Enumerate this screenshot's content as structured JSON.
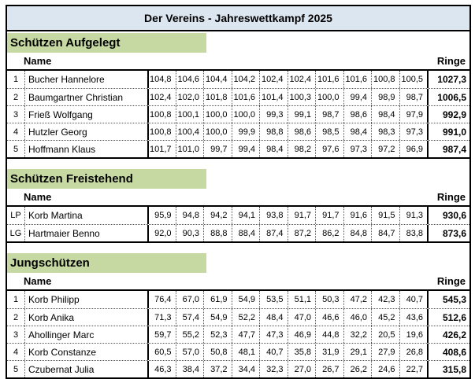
{
  "title": "Der Vereins - Jahreswettkampf 2025",
  "columns": {
    "name": "Name",
    "total": "Ringe"
  },
  "colors": {
    "title_bg": "#dce6f1",
    "section_banner_bg": "#c7d9a2",
    "border": "#000000"
  },
  "sections": [
    {
      "heading": "Schützen Aufgelegt",
      "rows": [
        {
          "rank": "1",
          "name": "Bucher Hannelore",
          "scores": [
            "104,8",
            "104,6",
            "104,4",
            "104,2",
            "102,4",
            "102,4",
            "101,6",
            "101,6",
            "100,8",
            "100,5"
          ],
          "total": "1027,3"
        },
        {
          "rank": "2",
          "name": "Baumgartner Christian",
          "scores": [
            "102,4",
            "102,0",
            "101,8",
            "101,6",
            "101,4",
            "100,3",
            "100,0",
            "99,4",
            "98,9",
            "98,7"
          ],
          "total": "1006,5"
        },
        {
          "rank": "3",
          "name": "Frieß Wolfgang",
          "scores": [
            "100,8",
            "100,1",
            "100,0",
            "100,0",
            "99,3",
            "99,1",
            "98,7",
            "98,6",
            "98,4",
            "97,9"
          ],
          "total": "992,9"
        },
        {
          "rank": "4",
          "name": "Hutzler Georg",
          "scores": [
            "100,8",
            "100,4",
            "100,0",
            "99,9",
            "98,8",
            "98,6",
            "98,5",
            "98,4",
            "98,3",
            "97,3"
          ],
          "total": "991,0"
        },
        {
          "rank": "5",
          "name": "Hoffmann Klaus",
          "scores": [
            "101,7",
            "101,0",
            "99,7",
            "99,4",
            "98,4",
            "98,2",
            "97,6",
            "97,3",
            "97,2",
            "96,9"
          ],
          "total": "987,4"
        }
      ]
    },
    {
      "heading": "Schützen Freistehend",
      "rows": [
        {
          "rank": "LP",
          "name": "Korb Martina",
          "scores": [
            "95,9",
            "94,8",
            "94,2",
            "94,1",
            "93,8",
            "91,7",
            "91,7",
            "91,6",
            "91,5",
            "91,3"
          ],
          "total": "930,6"
        },
        {
          "rank": "LG",
          "name": "Hartmaier Benno",
          "scores": [
            "92,0",
            "90,3",
            "88,8",
            "88,4",
            "87,4",
            "87,2",
            "86,2",
            "84,8",
            "84,7",
            "83,8"
          ],
          "total": "873,6"
        }
      ]
    },
    {
      "heading": "Jungschützen",
      "rows": [
        {
          "rank": "1",
          "name": "Korb Philipp",
          "scores": [
            "76,4",
            "67,0",
            "61,9",
            "54,9",
            "53,5",
            "51,1",
            "50,3",
            "47,2",
            "42,3",
            "40,7"
          ],
          "total": "545,3"
        },
        {
          "rank": "2",
          "name": "Korb Anika",
          "scores": [
            "71,3",
            "57,4",
            "54,9",
            "52,2",
            "48,4",
            "47,0",
            "46,6",
            "46,0",
            "45,2",
            "43,6"
          ],
          "total": "512,6"
        },
        {
          "rank": "3",
          "name": "Ahollinger Marc",
          "scores": [
            "59,7",
            "55,2",
            "52,3",
            "47,7",
            "47,3",
            "46,9",
            "44,8",
            "32,2",
            "20,5",
            "19,6"
          ],
          "total": "426,2"
        },
        {
          "rank": "4",
          "name": "Korb Constanze",
          "scores": [
            "60,5",
            "57,0",
            "50,8",
            "48,1",
            "40,7",
            "35,8",
            "31,9",
            "29,1",
            "27,9",
            "26,8"
          ],
          "total": "408,6"
        },
        {
          "rank": "5",
          "name": "Czubernat Julia",
          "scores": [
            "46,3",
            "38,4",
            "37,2",
            "34,4",
            "32,3",
            "27,0",
            "26,7",
            "26,2",
            "24,6",
            "22,7"
          ],
          "total": "315,8"
        }
      ]
    }
  ]
}
